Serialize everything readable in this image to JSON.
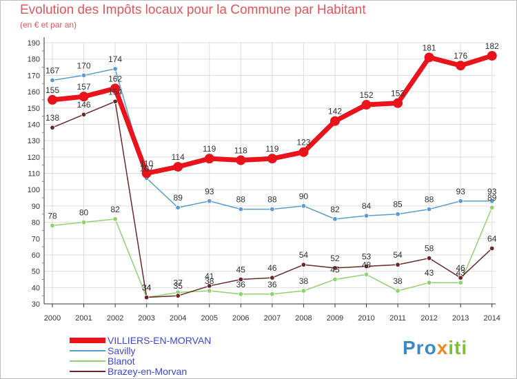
{
  "title": "Evolution des Impôts locaux pour la Commune par Habitant",
  "subtitle": "(en € et par an)",
  "logo": {
    "part1": "Pro",
    "part2": "x",
    "part3": "iti"
  },
  "chart_data": {
    "type": "line",
    "title": "Evolution des Impôts locaux pour la Commune par Habitant",
    "subtitle": "(en € et par an)",
    "xlabel": "",
    "ylabel": "",
    "ylim": [
      30,
      190
    ],
    "yticks": [
      30,
      40,
      50,
      60,
      70,
      80,
      90,
      100,
      110,
      120,
      130,
      140,
      150,
      160,
      170,
      180,
      190
    ],
    "x": [
      "2000",
      "2001",
      "2002",
      "2003",
      "2004",
      "2005",
      "2006",
      "2007",
      "2008",
      "2009",
      "2010",
      "2011",
      "2012",
      "2013",
      "2014"
    ],
    "legend_position": "bottom-left",
    "series": [
      {
        "name": "Savilly",
        "color": "#5b9bd0",
        "values": [
          167,
          170,
          174,
          107,
          89,
          93,
          88,
          88,
          90,
          82,
          84,
          85,
          88,
          93,
          93
        ]
      },
      {
        "name": "Blanot",
        "color": "#8fd16c",
        "values": [
          78,
          80,
          82,
          34,
          37,
          38,
          36,
          36,
          38,
          45,
          48,
          38,
          43,
          43,
          89
        ]
      },
      {
        "name": "Brazey-en-Morvan",
        "color": "#6b2525",
        "values": [
          138,
          146,
          154,
          34,
          35,
          41,
          45,
          46,
          54,
          52,
          53,
          54,
          58,
          46,
          64
        ]
      },
      {
        "name": "VILLIERS-EN-MORVAN",
        "color": "#e8131b",
        "values": [
          155,
          157,
          162,
          110,
          114,
          119,
          118,
          119,
          123,
          142,
          152,
          153,
          181,
          176,
          182
        ]
      }
    ]
  }
}
